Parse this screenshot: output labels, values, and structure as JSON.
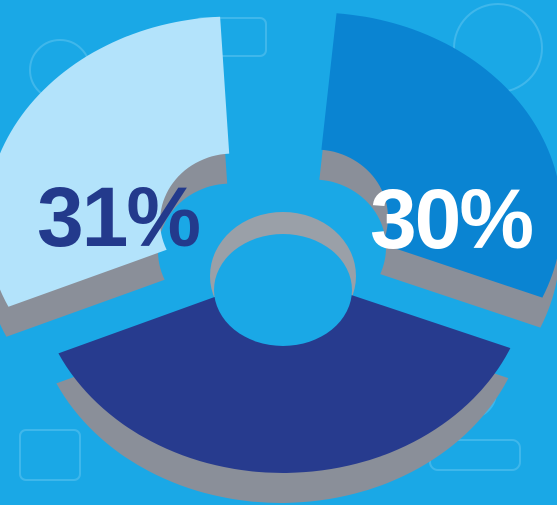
{
  "colors": {
    "background": "#1aa8e6",
    "doodle": "#5fc3ef",
    "shadow": "#8a8f99",
    "shadow_dark": "#6e737c",
    "hole_shadow": "#9aa0a8"
  },
  "chart_data": {
    "type": "pie",
    "style": "3d-donut-with-exploded-slices",
    "slices": [
      {
        "value": 31,
        "label": "31%",
        "color": "#b3e3fb",
        "label_color": "#233a8c",
        "exploded": true
      },
      {
        "value": 30,
        "label": "30%",
        "color": "#0a84d2",
        "label_color": "#ffffff",
        "exploded": true
      },
      {
        "value": 39,
        "label": "",
        "color": "#273b8e",
        "label_color": "#ffffff",
        "exploded": false
      }
    ]
  }
}
